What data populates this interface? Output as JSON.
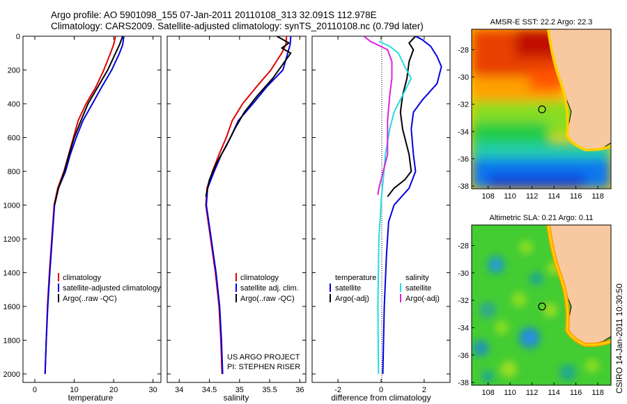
{
  "header": {
    "line1": "Argo profile: AO 5901098_155 07-Jan-2011 20110108_313 32.091S 112.978E",
    "line2": "Climatology: CARS2009. Satellite-adjusted climatology: synTS_20110108.nc (0.79d later)"
  },
  "credit": "CSIRO 14-Jan-2011 10:30:50",
  "project": {
    "line1": "US ARGO PROJECT",
    "line2": "PI: STEPHEN RISER"
  },
  "colors": {
    "climatology": "#e00000",
    "satellite": "#0000e0",
    "argo": "#000000",
    "sat_diff": "#22dddd",
    "argo_diff": "#dd22dd",
    "land": "#f8c8a0"
  },
  "chart_data": [
    {
      "type": "line",
      "xlabel": "temperature",
      "xlim": [
        -3,
        32
      ],
      "ylim": [
        2050,
        0
      ],
      "xticks": [
        0,
        10,
        20,
        30
      ],
      "yticks": [
        0,
        200,
        400,
        600,
        800,
        1000,
        1200,
        1400,
        1600,
        1800,
        2000
      ],
      "legend": [
        "climatology",
        "satellite-adjusted climatology",
        "Argo(..raw -QC)"
      ],
      "series": [
        {
          "name": "climatology",
          "color": "#e00000",
          "points": [
            [
              20.5,
              0
            ],
            [
              20.0,
              50
            ],
            [
              19.2,
              100
            ],
            [
              17.5,
              200
            ],
            [
              15.5,
              300
            ],
            [
              13.0,
              400
            ],
            [
              11.0,
              500
            ],
            [
              9.8,
              600
            ],
            [
              8.6,
              700
            ],
            [
              7.4,
              800
            ],
            [
              5.8,
              900
            ],
            [
              4.9,
              1000
            ],
            [
              4.3,
              1200
            ],
            [
              3.7,
              1400
            ],
            [
              3.2,
              1600
            ],
            [
              2.9,
              1800
            ],
            [
              2.6,
              2000
            ]
          ]
        },
        {
          "name": "satellite-adjusted climatology",
          "color": "#0000e0",
          "points": [
            [
              22.6,
              0
            ],
            [
              22.3,
              50
            ],
            [
              21.5,
              100
            ],
            [
              19.5,
              200
            ],
            [
              17.0,
              300
            ],
            [
              14.6,
              400
            ],
            [
              12.2,
              500
            ],
            [
              10.5,
              600
            ],
            [
              9.0,
              700
            ],
            [
              7.8,
              800
            ],
            [
              6.0,
              900
            ],
            [
              5.0,
              1000
            ],
            [
              4.4,
              1200
            ],
            [
              3.8,
              1400
            ],
            [
              3.3,
              1600
            ],
            [
              2.9,
              1800
            ],
            [
              2.6,
              2000
            ]
          ]
        },
        {
          "name": "Argo(..raw -QC)",
          "color": "#000000",
          "points": [
            [
              22.3,
              0
            ],
            [
              21.5,
              50
            ],
            [
              20.5,
              100
            ],
            [
              18.5,
              200
            ],
            [
              16.0,
              300
            ],
            [
              13.5,
              400
            ],
            [
              11.7,
              500
            ],
            [
              10.0,
              600
            ],
            [
              8.7,
              700
            ],
            [
              7.5,
              800
            ],
            [
              6.0,
              900
            ],
            [
              5.0,
              1000
            ]
          ]
        }
      ]
    },
    {
      "type": "line",
      "xlabel": "salinity",
      "xlim": [
        33.8,
        36.1
      ],
      "ylim": [
        2050,
        0
      ],
      "xticks": [
        34,
        34.5,
        35,
        35.5,
        36
      ],
      "yticks": [
        0,
        200,
        400,
        600,
        800,
        1000,
        1200,
        1400,
        1600,
        1800,
        2000
      ],
      "legend": [
        "climatology",
        "satellite adj. clim.",
        "Argo(..raw -QC)"
      ],
      "series": [
        {
          "name": "climatology",
          "color": "#e00000",
          "points": [
            [
              35.78,
              0
            ],
            [
              35.77,
              50
            ],
            [
              35.7,
              100
            ],
            [
              35.52,
              200
            ],
            [
              35.28,
              300
            ],
            [
              35.05,
              400
            ],
            [
              34.88,
              500
            ],
            [
              34.78,
              600
            ],
            [
              34.66,
              700
            ],
            [
              34.55,
              800
            ],
            [
              34.46,
              900
            ],
            [
              34.44,
              1000
            ],
            [
              34.52,
              1200
            ],
            [
              34.6,
              1400
            ],
            [
              34.66,
              1600
            ],
            [
              34.69,
              1800
            ],
            [
              34.71,
              2000
            ]
          ]
        },
        {
          "name": "satellite adj. clim.",
          "color": "#0000e0",
          "points": [
            [
              35.85,
              0
            ],
            [
              35.84,
              50
            ],
            [
              35.8,
              100
            ],
            [
              35.72,
              200
            ],
            [
              35.45,
              300
            ],
            [
              35.22,
              400
            ],
            [
              34.98,
              500
            ],
            [
              34.85,
              600
            ],
            [
              34.7,
              700
            ],
            [
              34.58,
              800
            ],
            [
              34.47,
              900
            ],
            [
              34.45,
              1000
            ],
            [
              34.53,
              1200
            ],
            [
              34.61,
              1400
            ],
            [
              34.67,
              1600
            ],
            [
              34.7,
              1800
            ],
            [
              34.72,
              2000
            ]
          ]
        },
        {
          "name": "Argo(..raw -QC)",
          "color": "#000000",
          "points": [
            [
              35.62,
              0
            ],
            [
              35.82,
              40
            ],
            [
              35.7,
              70
            ],
            [
              35.85,
              100
            ],
            [
              35.75,
              150
            ],
            [
              35.55,
              250
            ],
            [
              35.3,
              350
            ],
            [
              35.08,
              450
            ],
            [
              34.92,
              550
            ],
            [
              34.78,
              650
            ],
            [
              34.62,
              750
            ],
            [
              34.5,
              850
            ],
            [
              34.44,
              950
            ]
          ]
        }
      ]
    },
    {
      "type": "line",
      "xlabel": "difference from climatology",
      "xlim": [
        -3.2,
        3.2
      ],
      "ylim": [
        2050,
        0
      ],
      "xticks": [
        -2,
        0,
        2
      ],
      "yticks": [
        0,
        200,
        400,
        600,
        800,
        1000,
        1200,
        1400,
        1600,
        1800,
        2000
      ],
      "legend": [
        "temperature",
        "satellite",
        "Argo(-adj)",
        "salinity",
        "satellite",
        "Argo(-adj)"
      ],
      "series": [
        {
          "name": "temperature satellite",
          "color": "#0000e0",
          "points": [
            [
              1.6,
              0
            ],
            [
              1.9,
              20
            ],
            [
              2.3,
              60
            ],
            [
              2.6,
              120
            ],
            [
              2.8,
              180
            ],
            [
              2.6,
              280
            ],
            [
              1.9,
              380
            ],
            [
              1.5,
              450
            ],
            [
              1.4,
              550
            ],
            [
              1.5,
              700
            ],
            [
              1.6,
              800
            ],
            [
              1.3,
              900
            ],
            [
              0.6,
              1000
            ],
            [
              0.35,
              1100
            ],
            [
              0.25,
              1300
            ],
            [
              0.15,
              1600
            ],
            [
              0.08,
              2000
            ]
          ]
        },
        {
          "name": "temperature Argo(-adj)",
          "color": "#000000",
          "points": [
            [
              1.6,
              0
            ],
            [
              1.3,
              40
            ],
            [
              1.5,
              80
            ],
            [
              1.3,
              150
            ],
            [
              1.2,
              250
            ],
            [
              1.0,
              350
            ],
            [
              0.9,
              450
            ],
            [
              1.0,
              550
            ],
            [
              1.3,
              700
            ],
            [
              1.4,
              800
            ],
            [
              1.1,
              850
            ],
            [
              0.6,
              900
            ],
            [
              0.3,
              950
            ]
          ]
        },
        {
          "name": "salinity satellite",
          "color": "#22dddd",
          "points": [
            [
              -0.1,
              30
            ],
            [
              0.4,
              60
            ],
            [
              0.8,
              100
            ],
            [
              1.1,
              180
            ],
            [
              1.4,
              250
            ],
            [
              1.0,
              350
            ],
            [
              0.6,
              450
            ],
            [
              0.4,
              550
            ],
            [
              0.2,
              700
            ],
            [
              0.1,
              850
            ],
            [
              0.02,
              950
            ],
            [
              -0.1,
              1200
            ],
            [
              -0.15,
              1600
            ],
            [
              -0.12,
              2000
            ]
          ]
        },
        {
          "name": "salinity Argo(-adj)",
          "color": "#dd22dd",
          "points": [
            [
              -0.8,
              0
            ],
            [
              -0.5,
              30
            ],
            [
              0.3,
              80
            ],
            [
              0.5,
              150
            ],
            [
              0.5,
              250
            ],
            [
              0.4,
              350
            ],
            [
              0.3,
              500
            ],
            [
              0.3,
              700
            ],
            [
              0.1,
              800
            ],
            [
              -0.1,
              900
            ],
            [
              -0.15,
              940
            ]
          ]
        }
      ]
    },
    {
      "type": "heatmap",
      "title": "AMSR-E SST: 22.2 Argo: 22.3",
      "xticks": [
        108,
        110,
        112,
        114,
        116,
        118
      ],
      "yticks": [
        -28,
        -30,
        -32,
        -34,
        -36,
        -38
      ],
      "xlim": [
        106.5,
        119.2
      ],
      "ylim": [
        -26.5,
        -38.2
      ],
      "marker": [
        112.978,
        -32.091
      ]
    },
    {
      "type": "heatmap",
      "title": "Altimetric SLA: 0.21 Argo: 0.11",
      "xticks": [
        108,
        110,
        112,
        114,
        116,
        118
      ],
      "yticks": [
        -28,
        -30,
        -32,
        -34,
        -36,
        -38
      ],
      "xlim": [
        106.5,
        119.2
      ],
      "ylim": [
        -26.5,
        -38.2
      ],
      "marker": [
        112.978,
        -32.091
      ]
    }
  ]
}
